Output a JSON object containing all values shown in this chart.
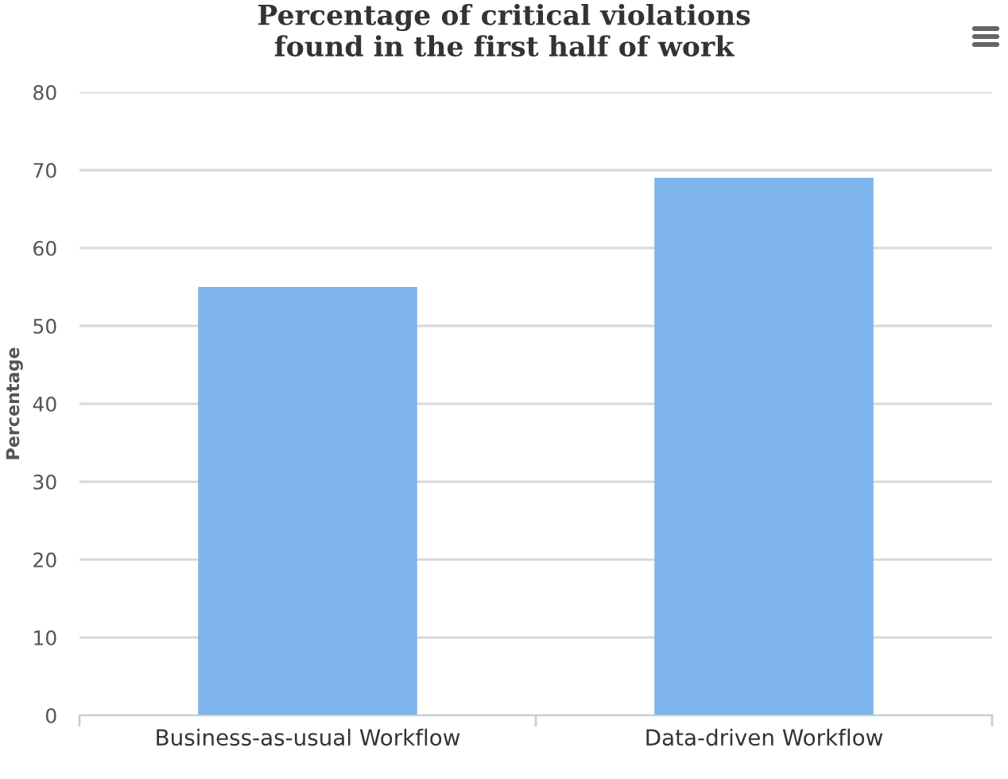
{
  "chart_data": {
    "type": "bar",
    "title": "Percentage of critical violations\nfound in the first half of work",
    "ylabel": "Percentage",
    "categories": [
      "Business-as-usual Workflow",
      "Data-driven Workflow"
    ],
    "values": [
      55,
      69
    ],
    "color": "#7cb4eb",
    "ylim": [
      0,
      80
    ],
    "yticks": [
      0,
      10,
      20,
      30,
      40,
      50,
      60,
      70,
      80
    ],
    "grid": "y",
    "legend": false
  }
}
